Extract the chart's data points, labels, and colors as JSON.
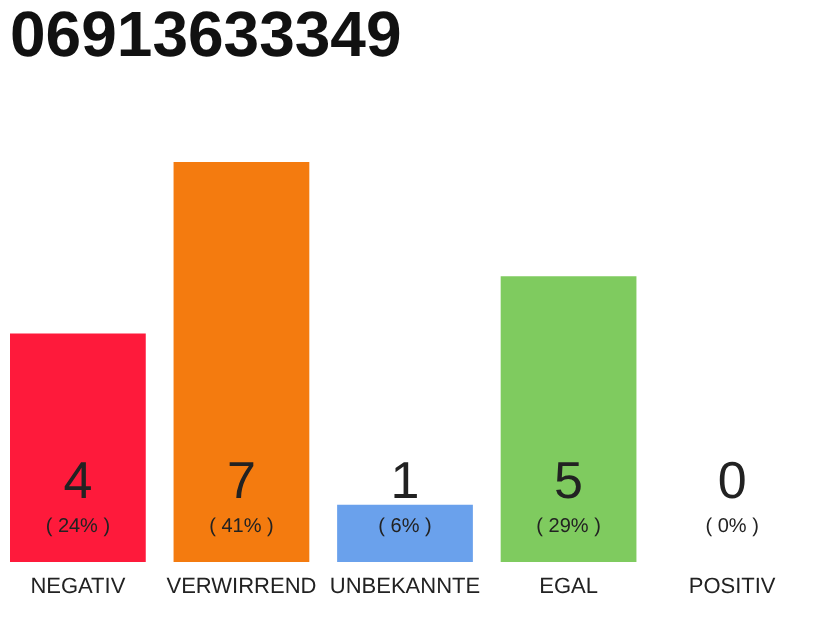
{
  "chart_data": {
    "type": "bar",
    "title": "06913633349",
    "categories": [
      "NEGATIV",
      "VERWIRREND",
      "UNBEKANNTE",
      "EGAL",
      "POSITIV"
    ],
    "values": [
      4,
      7,
      1,
      5,
      0
    ],
    "colors": [
      "#fe1a3b",
      "#f47b0f",
      "#6aa1ec",
      "#7fcb5f",
      "#cccccc"
    ],
    "data_labels": true,
    "annotations": [
      "( 24% )",
      "( 41% )",
      "( 6% )",
      "( 29% )",
      "( 0% )"
    ],
    "grid": false
  }
}
